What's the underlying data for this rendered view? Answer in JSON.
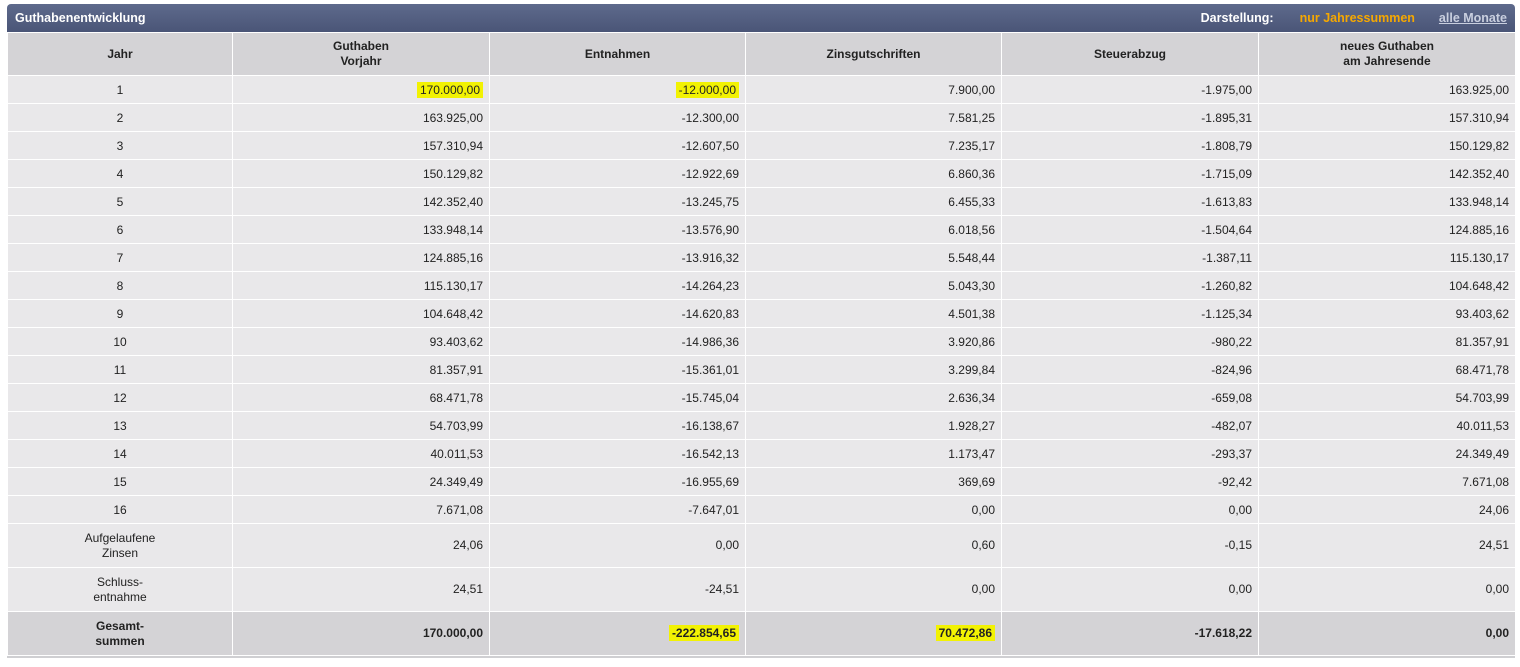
{
  "header": {
    "title": "Guthabenentwicklung",
    "view_label": "Darstellung:",
    "option_years": "nur Jahressummen",
    "option_months": "alle Monate"
  },
  "columns": [
    {
      "line1": "Jahr",
      "line2": ""
    },
    {
      "line1": "Guthaben",
      "line2": "Vorjahr"
    },
    {
      "line1": "Entnahmen",
      "line2": ""
    },
    {
      "line1": "Zinsgutschriften",
      "line2": ""
    },
    {
      "line1": "Steuerabzug",
      "line2": ""
    },
    {
      "line1": "neues Guthaben",
      "line2": "am Jahresende"
    }
  ],
  "rows": [
    {
      "label1": "1",
      "label2": "",
      "vals": [
        "170.000,00",
        "-12.000,00",
        "7.900,00",
        "-1.975,00",
        "163.925,00"
      ]
    },
    {
      "label1": "2",
      "label2": "",
      "vals": [
        "163.925,00",
        "-12.300,00",
        "7.581,25",
        "-1.895,31",
        "157.310,94"
      ]
    },
    {
      "label1": "3",
      "label2": "",
      "vals": [
        "157.310,94",
        "-12.607,50",
        "7.235,17",
        "-1.808,79",
        "150.129,82"
      ]
    },
    {
      "label1": "4",
      "label2": "",
      "vals": [
        "150.129,82",
        "-12.922,69",
        "6.860,36",
        "-1.715,09",
        "142.352,40"
      ]
    },
    {
      "label1": "5",
      "label2": "",
      "vals": [
        "142.352,40",
        "-13.245,75",
        "6.455,33",
        "-1.613,83",
        "133.948,14"
      ]
    },
    {
      "label1": "6",
      "label2": "",
      "vals": [
        "133.948,14",
        "-13.576,90",
        "6.018,56",
        "-1.504,64",
        "124.885,16"
      ]
    },
    {
      "label1": "7",
      "label2": "",
      "vals": [
        "124.885,16",
        "-13.916,32",
        "5.548,44",
        "-1.387,11",
        "115.130,17"
      ]
    },
    {
      "label1": "8",
      "label2": "",
      "vals": [
        "115.130,17",
        "-14.264,23",
        "5.043,30",
        "-1.260,82",
        "104.648,42"
      ]
    },
    {
      "label1": "9",
      "label2": "",
      "vals": [
        "104.648,42",
        "-14.620,83",
        "4.501,38",
        "-1.125,34",
        "93.403,62"
      ]
    },
    {
      "label1": "10",
      "label2": "",
      "vals": [
        "93.403,62",
        "-14.986,36",
        "3.920,86",
        "-980,22",
        "81.357,91"
      ]
    },
    {
      "label1": "11",
      "label2": "",
      "vals": [
        "81.357,91",
        "-15.361,01",
        "3.299,84",
        "-824,96",
        "68.471,78"
      ]
    },
    {
      "label1": "12",
      "label2": "",
      "vals": [
        "68.471,78",
        "-15.745,04",
        "2.636,34",
        "-659,08",
        "54.703,99"
      ]
    },
    {
      "label1": "13",
      "label2": "",
      "vals": [
        "54.703,99",
        "-16.138,67",
        "1.928,27",
        "-482,07",
        "40.011,53"
      ]
    },
    {
      "label1": "14",
      "label2": "",
      "vals": [
        "40.011,53",
        "-16.542,13",
        "1.173,47",
        "-293,37",
        "24.349,49"
      ]
    },
    {
      "label1": "15",
      "label2": "",
      "vals": [
        "24.349,49",
        "-16.955,69",
        "369,69",
        "-92,42",
        "7.671,08"
      ]
    },
    {
      "label1": "16",
      "label2": "",
      "vals": [
        "7.671,08",
        "-7.647,01",
        "0,00",
        "0,00",
        "24,06"
      ]
    },
    {
      "label1": "Aufgelaufene",
      "label2": "Zinsen",
      "vals": [
        "24,06",
        "0,00",
        "0,60",
        "-0,15",
        "24,51"
      ]
    },
    {
      "label1": "Schluss-",
      "label2": "entnahme",
      "vals": [
        "24,51",
        "-24,51",
        "0,00",
        "0,00",
        "0,00"
      ]
    }
  ],
  "totals": {
    "label1": "Gesamt-",
    "label2": "summen",
    "vals": [
      "170.000,00",
      "-222.854,65",
      "70.472,86",
      "-17.618,22",
      "0,00"
    ]
  },
  "highlight_color": "#f2f203",
  "accent_color": "#f6a800"
}
